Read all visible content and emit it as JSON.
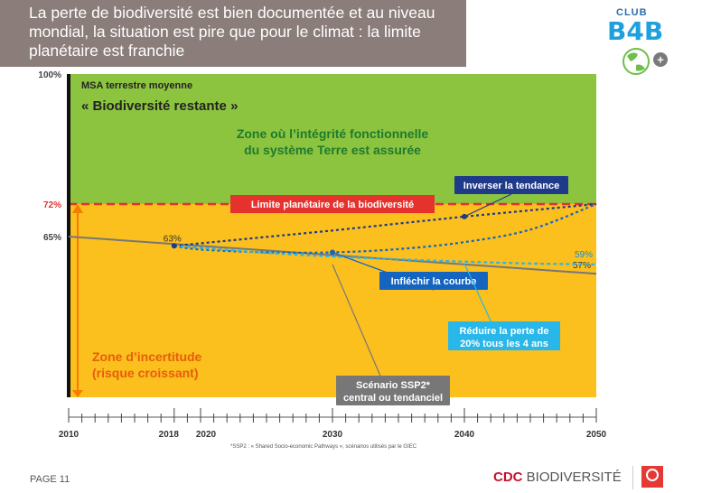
{
  "header": {
    "title": "La perte de biodiversité est bien documentée et au niveau mondial, la situation est pire que pour le climat : la limite planétaire est franchie"
  },
  "logo": {
    "club": "CLUB",
    "name": "B4B",
    "plus": "+"
  },
  "chart_data": {
    "type": "line",
    "ylabel_line1": "MSA terrestre moyenne",
    "ylabel_line2": "« Biodiversité restante »",
    "ylim": [
      53,
      100
    ],
    "xlim": [
      2010,
      2050
    ],
    "x_ticks": [
      2010,
      2018,
      2020,
      2030,
      2040,
      2050
    ],
    "y_ticks": [
      {
        "value": 100,
        "label": "100%"
      },
      {
        "value": 72,
        "label": "72%"
      },
      {
        "value": 65,
        "label": "65%"
      }
    ],
    "zones": {
      "safe": {
        "range": [
          72,
          100
        ],
        "label_line1": "Zone où l’intégrité fonctionnelle",
        "label_line2": "du système Terre est assurée",
        "color": "#8cc43f"
      },
      "uncertain": {
        "range": [
          53,
          72
        ],
        "label_line1": "Zone d’incertitude",
        "label_line2": "(risque croissant)",
        "color": "#fbbf1e"
      }
    },
    "boundary": {
      "value": 72,
      "label": "Limite planétaire de la biodiversité",
      "color": "#e5322d"
    },
    "series": [
      {
        "name": "Scénario SSP2* central ou tendanciel",
        "label_line1": "Scénario SSP2*",
        "label_line2": "central ou tendanciel",
        "color": "#777777",
        "x": [
          2010,
          2018,
          2050
        ],
        "y": [
          65,
          63,
          57
        ],
        "end_label": "57%"
      },
      {
        "name": "Inverser la tendance",
        "color": "#1f3a8a",
        "x": [
          2018,
          2030,
          2040,
          2050
        ],
        "y": [
          63,
          66.3,
          69.3,
          72
        ]
      },
      {
        "name": "Infléchir la courbe",
        "color": "#1565c0",
        "x": [
          2018,
          2020,
          2025,
          2030,
          2035,
          2040,
          2045,
          2050
        ],
        "y": [
          63,
          62.2,
          61.6,
          61.6,
          62.3,
          63.8,
          66.5,
          72
        ]
      },
      {
        "name": "Réduire la perte de 20% tous les 4 ans",
        "label_line1": "Réduire la perte de",
        "label_line2": "20% tous les 4 ans",
        "color": "#29b6e8",
        "x": [
          2018,
          2025,
          2030,
          2035,
          2040,
          2045,
          2050
        ],
        "y": [
          63,
          61.5,
          60.7,
          60.1,
          59.6,
          59.2,
          59
        ],
        "end_label": "59%"
      }
    ],
    "start_label": "63%",
    "footnote": "*SSP2 : « Shared Socio-economic Pathways », scénarios utilisés par le GIEC"
  },
  "footer": {
    "page": "PAGE 11",
    "brand_cdc": "CDC",
    "brand_bio": "BIODIVERSITÉ"
  },
  "colors": {
    "title_bg": "#8b7d7a",
    "green": "#8cc43f",
    "orange": "#fbbf1e",
    "red": "#e5322d",
    "gray": "#777777",
    "darkblue": "#1f3a8a",
    "blue": "#1565c0",
    "lightblue": "#29b6e8",
    "zone_text_green": "#1f7a2e",
    "zone_text_orange": "#e85d0c"
  }
}
